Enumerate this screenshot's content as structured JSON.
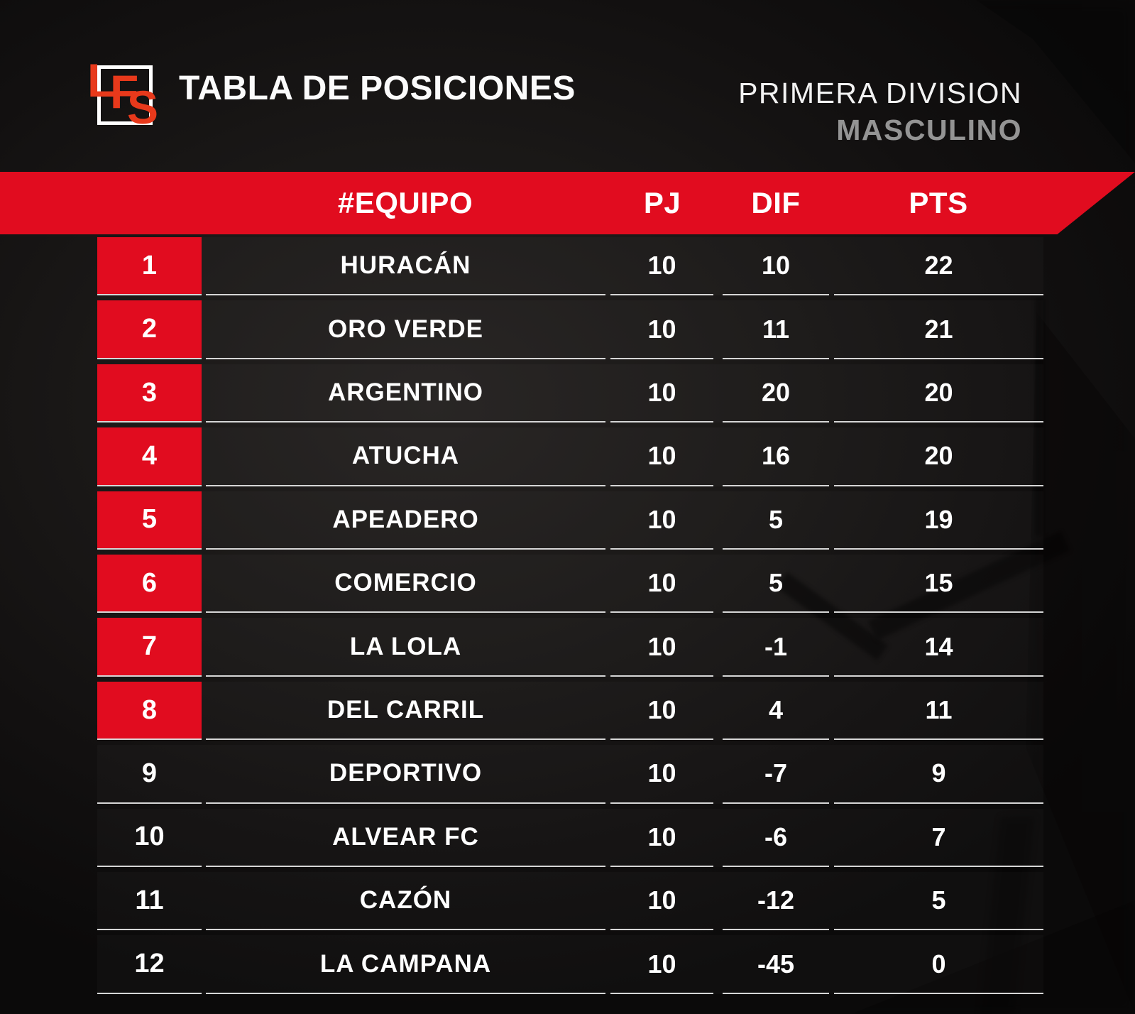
{
  "header": {
    "logo_letters": [
      "L",
      "F",
      "S"
    ],
    "title": "TABLA DE POSICIONES",
    "division": "PRIMERA DIVISION",
    "category": "MASCULINO"
  },
  "table": {
    "columns": {
      "team": "#EQUIPO",
      "pj": "PJ",
      "dif": "DIF",
      "pts": "PTS"
    },
    "rows": [
      {
        "pos": "1",
        "team": "HURACÁN",
        "pj": "10",
        "dif": "10",
        "pts": "22",
        "highlight": true
      },
      {
        "pos": "2",
        "team": "ORO VERDE",
        "pj": "10",
        "dif": "11",
        "pts": "21",
        "highlight": true
      },
      {
        "pos": "3",
        "team": "ARGENTINO",
        "pj": "10",
        "dif": "20",
        "pts": "20",
        "highlight": true
      },
      {
        "pos": "4",
        "team": "ATUCHA",
        "pj": "10",
        "dif": "16",
        "pts": "20",
        "highlight": true
      },
      {
        "pos": "5",
        "team": "APEADERO",
        "pj": "10",
        "dif": "5",
        "pts": "19",
        "highlight": true
      },
      {
        "pos": "6",
        "team": "COMERCIO",
        "pj": "10",
        "dif": "5",
        "pts": "15",
        "highlight": true
      },
      {
        "pos": "7",
        "team": "LA LOLA",
        "pj": "10",
        "dif": "-1",
        "pts": "14",
        "highlight": true
      },
      {
        "pos": "8",
        "team": "DEL CARRIL",
        "pj": "10",
        "dif": "4",
        "pts": "11",
        "highlight": true
      },
      {
        "pos": "9",
        "team": "DEPORTIVO",
        "pj": "10",
        "dif": "-7",
        "pts": "9",
        "highlight": false
      },
      {
        "pos": "10",
        "team": "ALVEAR FC",
        "pj": "10",
        "dif": "-6",
        "pts": "7",
        "highlight": false
      },
      {
        "pos": "11",
        "team": "CAZÓN",
        "pj": "10",
        "dif": "-12",
        "pts": "5",
        "highlight": false
      },
      {
        "pos": "12",
        "team": "LA CAMPANA",
        "pj": "10",
        "dif": "-45",
        "pts": "0",
        "highlight": false
      }
    ]
  },
  "colors": {
    "accent_red": "#e10c1f",
    "logo_orange": "#e8391b",
    "muted_gray": "#949494",
    "divider": "#d6d6d6"
  },
  "chart_data": {
    "type": "table",
    "title": "TABLA DE POSICIONES",
    "subtitle": "PRIMERA DIVISION MASCULINO",
    "columns": [
      "#EQUIPO",
      "PJ",
      "DIF",
      "PTS"
    ],
    "rows": [
      [
        "HURACÁN",
        10,
        10,
        22
      ],
      [
        "ORO VERDE",
        10,
        11,
        21
      ],
      [
        "ARGENTINO",
        10,
        20,
        20
      ],
      [
        "ATUCHA",
        10,
        16,
        20
      ],
      [
        "APEADERO",
        10,
        5,
        19
      ],
      [
        "COMERCIO",
        10,
        5,
        15
      ],
      [
        "LA LOLA",
        10,
        -1,
        14
      ],
      [
        "DEL CARRIL",
        10,
        4,
        11
      ],
      [
        "DEPORTIVO",
        10,
        -7,
        9
      ],
      [
        "ALVEAR FC",
        10,
        -6,
        7
      ],
      [
        "CAZÓN",
        10,
        -12,
        5
      ],
      [
        "LA CAMPANA",
        10,
        -45,
        0
      ]
    ]
  }
}
